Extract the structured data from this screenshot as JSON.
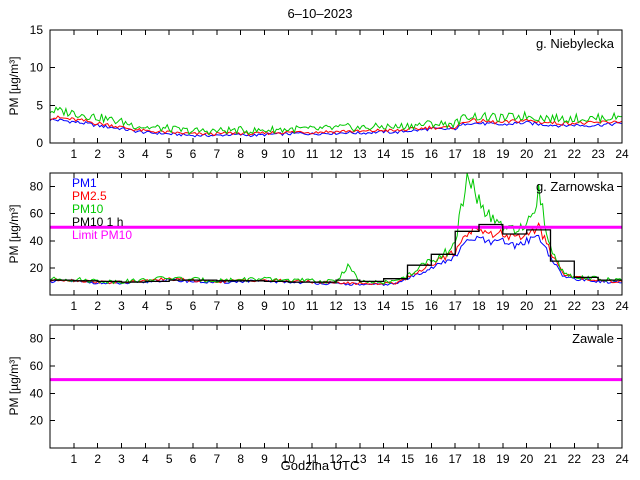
{
  "title": "6–10–2023",
  "xlabel": "Godzina UTC",
  "ylabel": "PM [µg/m³]",
  "chart_data": [
    {
      "type": "line",
      "station": "g. Niebylecka",
      "ylim": [
        0,
        15
      ],
      "yticks": [
        0,
        5,
        10,
        15
      ],
      "xticks": [
        1,
        2,
        3,
        4,
        5,
        6,
        7,
        8,
        9,
        10,
        11,
        12,
        13,
        14,
        15,
        16,
        17,
        18,
        19,
        20,
        21,
        22,
        23,
        24
      ],
      "x_step": 0.5,
      "series": [
        {
          "name": "PM1",
          "color": "#0000ff",
          "noise": 0.15,
          "noise_rel": 0.03,
          "values": [
            3.1,
            3.0,
            2.8,
            2.6,
            2.3,
            2.1,
            1.9,
            1.6,
            1.4,
            1.3,
            1.2,
            1.1,
            1.0,
            1.0,
            1.0,
            1.1,
            1.1,
            1.0,
            1.1,
            1.2,
            1.2,
            1.3,
            1.2,
            1.3,
            1.3,
            1.4,
            1.3,
            1.4,
            1.5,
            1.4,
            1.6,
            1.7,
            1.9,
            1.8,
            1.9,
            2.7,
            2.6,
            2.5,
            2.4,
            2.6,
            2.7,
            2.5,
            2.4,
            2.3,
            2.4,
            2.3,
            2.4,
            2.5,
            2.6
          ]
        },
        {
          "name": "PM2.5",
          "color": "#ff0000",
          "noise": 0.18,
          "noise_rel": 0.03,
          "values": [
            3.4,
            3.3,
            3.1,
            2.9,
            2.6,
            2.4,
            2.1,
            1.8,
            1.6,
            1.5,
            1.4,
            1.3,
            1.2,
            1.2,
            1.2,
            1.3,
            1.3,
            1.2,
            1.3,
            1.4,
            1.4,
            1.5,
            1.4,
            1.5,
            1.5,
            1.6,
            1.5,
            1.6,
            1.7,
            1.6,
            1.8,
            1.9,
            2.1,
            2.0,
            2.1,
            3.0,
            2.9,
            2.8,
            2.7,
            2.9,
            3.0,
            2.8,
            2.7,
            2.6,
            2.7,
            2.6,
            2.7,
            2.8,
            2.9
          ]
        },
        {
          "name": "PM10",
          "color": "#00c800",
          "noise": 0.4,
          "noise_rel": 0.05,
          "values": [
            4.3,
            4.2,
            4.0,
            3.7,
            3.4,
            3.1,
            2.8,
            2.4,
            2.1,
            2.0,
            1.9,
            1.7,
            1.6,
            1.6,
            1.6,
            1.7,
            1.7,
            1.6,
            1.7,
            1.8,
            1.8,
            1.9,
            1.8,
            1.9,
            2.0,
            2.1,
            2.0,
            2.1,
            2.2,
            2.1,
            2.3,
            2.4,
            2.6,
            2.5,
            2.6,
            3.6,
            3.5,
            3.4,
            3.3,
            3.5,
            3.6,
            3.4,
            3.3,
            3.2,
            3.3,
            3.2,
            3.3,
            3.4,
            3.5
          ]
        }
      ]
    },
    {
      "type": "line",
      "station": "g. Zarnowska",
      "ylim": [
        0,
        90
      ],
      "yticks": [
        20,
        40,
        60,
        80
      ],
      "xticks": [
        1,
        2,
        3,
        4,
        5,
        6,
        7,
        8,
        9,
        10,
        11,
        12,
        13,
        14,
        15,
        16,
        17,
        18,
        19,
        20,
        21,
        22,
        23,
        24
      ],
      "x_step": 0.5,
      "legend": [
        {
          "label": "PM1",
          "color": "#0000ff"
        },
        {
          "label": "PM2.5",
          "color": "#ff0000"
        },
        {
          "label": "PM10",
          "color": "#00c800"
        },
        {
          "label": "PM10 1 h",
          "color": "#000000"
        },
        {
          "label": "Limit PM10",
          "color": "#ff00ff"
        }
      ],
      "series": [
        {
          "name": "PM1",
          "color": "#0000ff",
          "noise": 0.5,
          "noise_rel": 0.05,
          "values": [
            10,
            10.5,
            10,
            9.5,
            9,
            8.5,
            8.5,
            9,
            9.5,
            10.5,
            11,
            10.5,
            10,
            9.5,
            9.2,
            9.5,
            10,
            10.2,
            10,
            9.8,
            9.5,
            9.2,
            9,
            8.5,
            8.2,
            8,
            7.8,
            7.5,
            7.8,
            8.2,
            12,
            16,
            20,
            24,
            28,
            40,
            42,
            38,
            40,
            36,
            40,
            44,
            28,
            14,
            12,
            11,
            10,
            9.5,
            9
          ]
        },
        {
          "name": "PM2.5",
          "color": "#ff0000",
          "noise": 0.5,
          "noise_rel": 0.06,
          "values": [
            10.8,
            11.3,
            10.8,
            10.3,
            9.8,
            9.3,
            9.3,
            9.8,
            10.3,
            11.3,
            11.8,
            11.3,
            10.8,
            10.3,
            10,
            10.3,
            10.8,
            11,
            10.8,
            10.6,
            10.3,
            10,
            9.8,
            9.3,
            9,
            8.8,
            8.6,
            8.3,
            8.6,
            9,
            13,
            18,
            23,
            27,
            32,
            46,
            50,
            44,
            46,
            41,
            45,
            50,
            32,
            16,
            13,
            12,
            11,
            10.3,
            9.8
          ]
        },
        {
          "name": "PM10",
          "color": "#00c800",
          "noise": 0.6,
          "noise_rel": 0.09,
          "values": [
            11.5,
            12,
            11.5,
            11,
            10.5,
            10,
            10,
            10.5,
            11,
            12,
            12.5,
            12,
            11.5,
            11,
            10.8,
            11,
            11.5,
            11.8,
            11.5,
            11.2,
            11,
            10.8,
            10.5,
            10,
            9.8,
            22,
            9.5,
            9.2,
            9.5,
            10,
            14,
            20,
            26,
            30,
            36,
            90,
            70,
            55,
            50,
            46,
            50,
            75,
            35,
            17,
            14,
            13,
            12,
            11,
            10.5
          ]
        }
      ],
      "hourly": {
        "name": "PM10 1 h",
        "color": "#000000",
        "values": [
          11,
          10.5,
          10,
          9.5,
          10,
          11,
          11,
          10.5,
          10.5,
          10,
          9.5,
          9.5,
          11,
          10,
          12,
          22,
          30,
          47,
          52,
          45,
          48,
          25,
          13,
          11
        ]
      },
      "limit": 50,
      "limit_color": "#ff00ff",
      "limit_label": "Limit PM10"
    },
    {
      "type": "line",
      "station": "Zawale",
      "ylim": [
        0,
        90
      ],
      "yticks": [
        20,
        40,
        60,
        80
      ],
      "xticks": [
        1,
        2,
        3,
        4,
        5,
        6,
        7,
        8,
        9,
        10,
        11,
        12,
        13,
        14,
        15,
        16,
        17,
        18,
        19,
        20,
        21,
        22,
        23,
        24
      ],
      "x_step": 0.5,
      "series": [],
      "limit": 50,
      "limit_color": "#ff00ff"
    }
  ]
}
